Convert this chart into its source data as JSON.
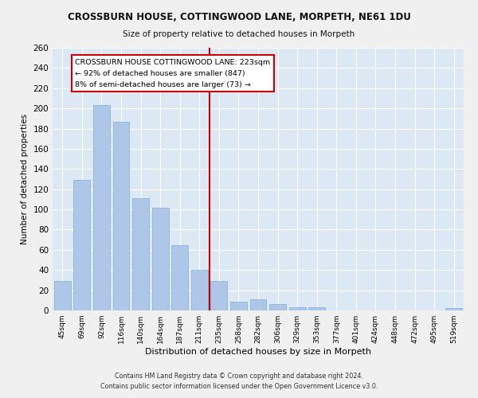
{
  "title": "CROSSBURN HOUSE, COTTINGWOOD LANE, MORPETH, NE61 1DU",
  "subtitle": "Size of property relative to detached houses in Morpeth",
  "xlabel": "Distribution of detached houses by size in Morpeth",
  "ylabel": "Number of detached properties",
  "categories": [
    "45sqm",
    "69sqm",
    "92sqm",
    "116sqm",
    "140sqm",
    "164sqm",
    "187sqm",
    "211sqm",
    "235sqm",
    "258sqm",
    "282sqm",
    "306sqm",
    "329sqm",
    "353sqm",
    "377sqm",
    "401sqm",
    "424sqm",
    "448sqm",
    "472sqm",
    "495sqm",
    "519sqm"
  ],
  "values": [
    29,
    129,
    203,
    187,
    111,
    102,
    65,
    40,
    29,
    9,
    11,
    6,
    3,
    3,
    0,
    0,
    0,
    0,
    0,
    0,
    2
  ],
  "bar_color": "#aec6e8",
  "bar_edge_color": "#7bafd4",
  "property_line_x": 7.5,
  "property_label": "CROSSBURN HOUSE COTTINGWOOD LANE: 223sqm",
  "annotation_smaller": "← 92% of detached houses are smaller (847)",
  "annotation_larger": "8% of semi-detached houses are larger (73) →",
  "annotation_box_color": "#ffffff",
  "annotation_box_edge": "#cc0000",
  "vline_color": "#cc0000",
  "ylim": [
    0,
    260
  ],
  "yticks": [
    0,
    20,
    40,
    60,
    80,
    100,
    120,
    140,
    160,
    180,
    200,
    220,
    240,
    260
  ],
  "background_color": "#dde8f5",
  "grid_color": "#ffffff",
  "footer_line1": "Contains HM Land Registry data © Crown copyright and database right 2024.",
  "footer_line2": "Contains public sector information licensed under the Open Government Licence v3.0."
}
